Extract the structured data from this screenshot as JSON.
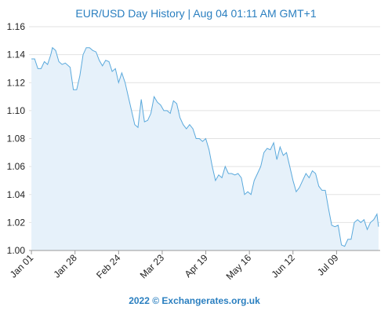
{
  "chart_data": {
    "type": "line",
    "title": "EUR/USD  Day History | Aug 04 01:11 AM GMT+1",
    "footer": "2022 © Exchangerates.org.uk",
    "x": [
      0,
      2,
      4,
      6,
      8,
      10,
      12,
      13,
      15,
      17,
      19,
      21,
      24,
      26,
      28,
      30,
      32,
      34,
      36,
      38,
      40,
      42,
      44,
      46,
      48,
      50,
      52,
      54,
      56,
      58,
      60,
      62,
      64,
      66,
      68,
      70,
      72,
      74,
      76,
      78,
      80,
      82,
      84,
      86,
      88,
      90,
      92,
      94,
      96,
      98,
      100,
      102,
      104,
      106,
      108,
      110,
      112,
      114,
      116,
      118,
      120,
      122,
      124,
      126,
      128,
      130,
      132,
      134,
      136,
      138,
      140,
      142,
      144,
      146,
      148,
      150,
      152,
      154,
      156,
      158,
      160,
      162,
      164,
      166,
      168,
      170,
      172,
      174,
      176,
      178,
      180,
      182,
      184,
      186,
      188,
      190,
      192,
      194,
      196,
      198,
      200,
      202,
      204,
      206,
      208,
      210,
      212,
      214,
      215
    ],
    "series": [
      {
        "name": "EUR/USD",
        "color": "#5aa9dc",
        "values": [
          1.137,
          1.137,
          1.13,
          1.13,
          1.135,
          1.133,
          1.14,
          1.145,
          1.143,
          1.135,
          1.133,
          1.134,
          1.131,
          1.115,
          1.115,
          1.125,
          1.14,
          1.145,
          1.145,
          1.143,
          1.142,
          1.136,
          1.132,
          1.136,
          1.135,
          1.128,
          1.13,
          1.12,
          1.127,
          1.12,
          1.11,
          1.1,
          1.09,
          1.088,
          1.108,
          1.092,
          1.093,
          1.098,
          1.11,
          1.106,
          1.104,
          1.1,
          1.1,
          1.098,
          1.107,
          1.105,
          1.095,
          1.09,
          1.087,
          1.09,
          1.087,
          1.08,
          1.08,
          1.078,
          1.08,
          1.072,
          1.06,
          1.05,
          1.054,
          1.052,
          1.06,
          1.055,
          1.055,
          1.054,
          1.055,
          1.052,
          1.04,
          1.042,
          1.04,
          1.05,
          1.055,
          1.06,
          1.07,
          1.073,
          1.072,
          1.077,
          1.065,
          1.074,
          1.068,
          1.07,
          1.06,
          1.05,
          1.042,
          1.045,
          1.05,
          1.055,
          1.052,
          1.057,
          1.055,
          1.046,
          1.043,
          1.043,
          1.03,
          1.018,
          1.017,
          1.018,
          1.004,
          1.003,
          1.008,
          1.008,
          1.02,
          1.022,
          1.02,
          1.022,
          1.015,
          1.02,
          1.022,
          1.026,
          1.017
        ]
      }
    ],
    "fill_color": "#e6f1fa",
    "xlim": [
      -1.5,
      216
    ],
    "xticks": [
      {
        "value": 0,
        "label": "Jan 01"
      },
      {
        "value": 27,
        "label": "Jan 28"
      },
      {
        "value": 54,
        "label": "Feb 24"
      },
      {
        "value": 81,
        "label": "Mar 23"
      },
      {
        "value": 108,
        "label": "Apr 19"
      },
      {
        "value": 135,
        "label": "May 16"
      },
      {
        "value": 162,
        "label": "Jun 12"
      },
      {
        "value": 189,
        "label": "Jul 09"
      }
    ],
    "ylim": [
      1.0,
      1.16
    ],
    "yticks": [
      {
        "value": 1.0,
        "label": "1.00"
      },
      1.02,
      1.04,
      1.06,
      1.08,
      {
        "value": 1.1,
        "label": "1.10"
      },
      1.12,
      1.14,
      1.16
    ],
    "grid": true
  }
}
